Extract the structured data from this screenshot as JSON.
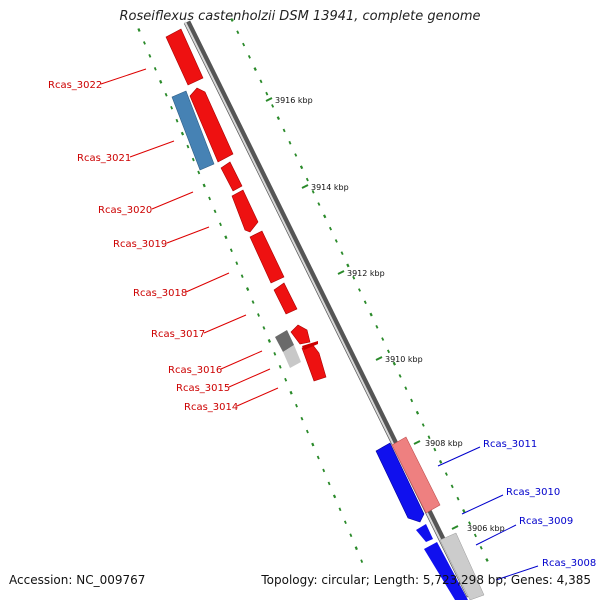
{
  "title": "Roseiflexus castenholzii DSM 13941, complete genome",
  "footer": {
    "accession": "Accession: NC_009767",
    "topology": "Topology: circular; Length: 5,723,298 bp; Genes: 4,385"
  },
  "kbp_ticks": [
    "3916 kbp",
    "3914 kbp",
    "3912 kbp",
    "3910 kbp",
    "3908 kbp",
    "3906 kbp"
  ],
  "left_labels": [
    "Rcas_3022",
    "Rcas_3021",
    "Rcas_3020",
    "Rcas_3019",
    "Rcas_3018",
    "Rcas_3017",
    "Rcas_3016",
    "Rcas_3015",
    "Rcas_3014"
  ],
  "right_labels": [
    "Rcas_3011",
    "Rcas_3010",
    "Rcas_3009",
    "Rcas_3008"
  ],
  "colors": {
    "forward_gene": "#ff0000",
    "reverse_gene": "#0000ff",
    "steel_blue_gene": "#4682b4",
    "pink_gene": "#f08080",
    "grey_gene": "#777777",
    "light_grey_gene": "#cccccc",
    "tick_green": "#2a8a2a",
    "backbone": "#888888"
  }
}
